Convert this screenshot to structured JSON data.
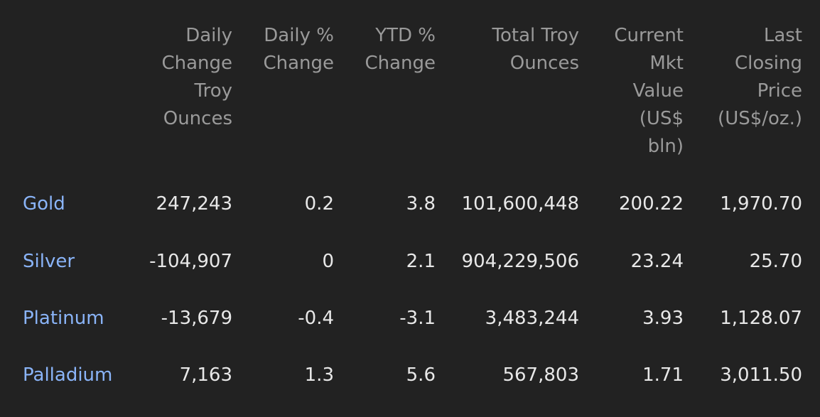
{
  "headers": [
    "Daily\nChange\nTroy\nOunces",
    "Daily %\nChange",
    "YTD %\nChange",
    "Total Troy\nOunces",
    "Current\nMkt\nValue\n(US$\nbln)",
    "Last\nClosing\nPrice\n(US$/oz.)"
  ],
  "rows": [
    {
      "name": "Gold",
      "daily_change_oz": "247,243",
      "daily_pct": "0.2",
      "ytd_pct": "3.8",
      "total_oz": "101,600,448",
      "mkt_value": "200.22",
      "last_price": "1,970.70"
    },
    {
      "name": "Silver",
      "daily_change_oz": "-104,907",
      "daily_pct": "0",
      "ytd_pct": "2.1",
      "total_oz": "904,229,506",
      "mkt_value": "23.24",
      "last_price": "25.70"
    },
    {
      "name": "Platinum",
      "daily_change_oz": "-13,679",
      "daily_pct": "-0.4",
      "ytd_pct": "-3.1",
      "total_oz": "3,483,244",
      "mkt_value": "3.93",
      "last_price": "1,128.07"
    },
    {
      "name": "Palladium",
      "daily_change_oz": "7,163",
      "daily_pct": "1.3",
      "ytd_pct": "5.6",
      "total_oz": "567,803",
      "mkt_value": "1.71",
      "last_price": "3,011.50"
    }
  ],
  "colors": {
    "background": "#222222",
    "header_text": "#9a9a9a",
    "value_text": "#e8e8e8",
    "link_text": "#8ab4f8"
  }
}
